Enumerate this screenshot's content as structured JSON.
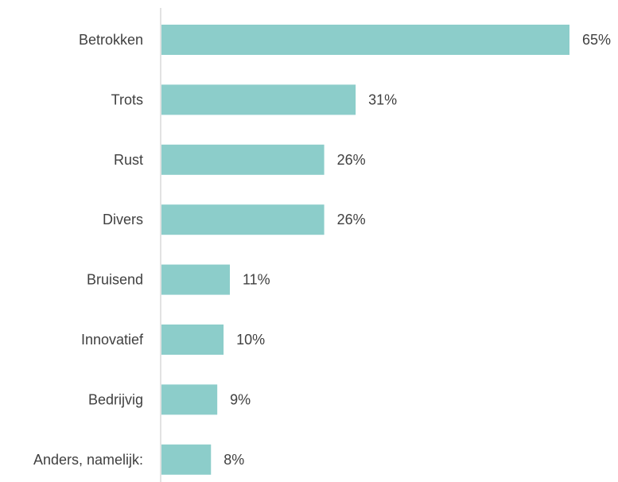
{
  "chart_data": {
    "type": "bar",
    "orientation": "horizontal",
    "categories": [
      "Betrokken",
      "Trots",
      "Rust",
      "Divers",
      "Bruisend",
      "Innovatief",
      "Bedrijvig",
      "Anders, namelijk:"
    ],
    "values": [
      65,
      31,
      26,
      26,
      11,
      10,
      9,
      8
    ],
    "value_labels": [
      "65%",
      "31%",
      "26%",
      "26%",
      "11%",
      "10%",
      "9%",
      "8%"
    ],
    "xlim": [
      0,
      65
    ],
    "grid": false,
    "legend": "none",
    "colors": {
      "bar": "#8ccdca",
      "axis": "#d9d9d9",
      "text": "#404040"
    }
  }
}
